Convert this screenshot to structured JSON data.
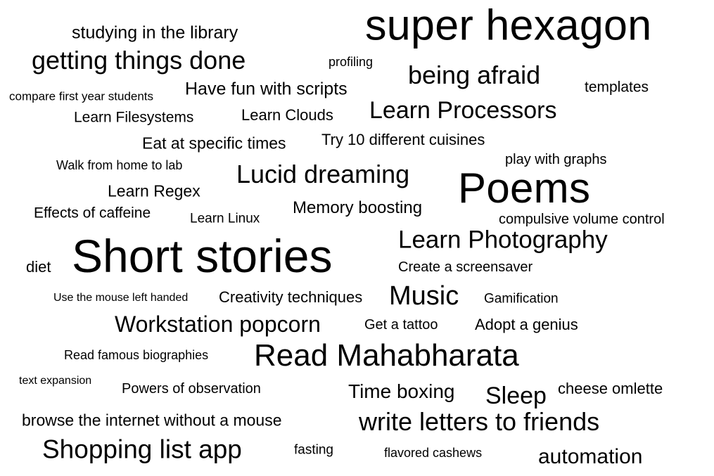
{
  "text_color": "#000000",
  "background_color": "#ffffff",
  "words": [
    {
      "text": "super hexagon"
    },
    {
      "text": "studying in the library"
    },
    {
      "text": "getting things done"
    },
    {
      "text": "profiling"
    },
    {
      "text": "being afraid"
    },
    {
      "text": "templates"
    },
    {
      "text": "compare first year students"
    },
    {
      "text": "Have fun with scripts"
    },
    {
      "text": "Learn Filesystems"
    },
    {
      "text": "Learn Clouds"
    },
    {
      "text": "Learn Processors"
    },
    {
      "text": "Eat at specific times"
    },
    {
      "text": "Try 10 different cuisines"
    },
    {
      "text": "Walk from home to lab"
    },
    {
      "text": "play with graphs"
    },
    {
      "text": "Lucid dreaming"
    },
    {
      "text": "Poems"
    },
    {
      "text": "Learn Regex"
    },
    {
      "text": "Effects of caffeine"
    },
    {
      "text": "Learn Linux"
    },
    {
      "text": "Memory boosting"
    },
    {
      "text": "compulsive volume control"
    },
    {
      "text": "Learn Photography"
    },
    {
      "text": "diet"
    },
    {
      "text": "Short stories"
    },
    {
      "text": "Create a screensaver"
    },
    {
      "text": "Use the mouse left handed"
    },
    {
      "text": "Creativity techniques"
    },
    {
      "text": "Music"
    },
    {
      "text": "Gamification"
    },
    {
      "text": "Workstation popcorn"
    },
    {
      "text": "Get a tattoo"
    },
    {
      "text": "Adopt a genius"
    },
    {
      "text": "Read famous biographies"
    },
    {
      "text": "Read Mahabharata"
    },
    {
      "text": "text expansion"
    },
    {
      "text": "Powers of observation"
    },
    {
      "text": "Time boxing"
    },
    {
      "text": "Sleep"
    },
    {
      "text": "cheese omlette"
    },
    {
      "text": "browse the internet without a mouse"
    },
    {
      "text": "write letters to friends"
    },
    {
      "text": "Shopping list app"
    },
    {
      "text": "fasting"
    },
    {
      "text": "flavored cashews"
    },
    {
      "text": "automation"
    }
  ]
}
